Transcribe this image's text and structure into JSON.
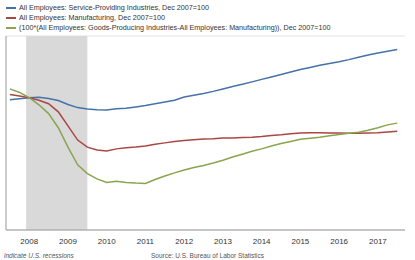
{
  "chart_data": {
    "type": "line",
    "x": [
      2007.5,
      2007.75,
      2008,
      2008.25,
      2008.5,
      2008.75,
      2009,
      2009.25,
      2009.5,
      2009.75,
      2010,
      2010.25,
      2010.5,
      2010.75,
      2011,
      2011.25,
      2011.5,
      2011.75,
      2012,
      2012.25,
      2012.5,
      2012.75,
      2013,
      2013.25,
      2013.5,
      2013.75,
      2014,
      2014.25,
      2014.5,
      2014.75,
      2015,
      2015.25,
      2015.5,
      2015.75,
      2016,
      2016.25,
      2016.5,
      2016.75,
      2017,
      2017.25,
      2017.5
    ],
    "series": [
      {
        "name": "All Employees: Service-Providing Industries, Dec 2007=100",
        "color": "#4572a7",
        "values": [
          99.4,
          99.7,
          100,
          100.1,
          99.8,
          99.2,
          98.1,
          97.2,
          96.8,
          96.6,
          96.5,
          96.9,
          97.0,
          97.4,
          97.8,
          98.3,
          98.8,
          99.3,
          100.2,
          100.7,
          101.2,
          101.8,
          102.5,
          103.2,
          103.8,
          104.5,
          105.2,
          105.9,
          106.6,
          107.3,
          108,
          108.6,
          109.2,
          109.7,
          110.2,
          110.8,
          111.5,
          112.1,
          112.7,
          113.2,
          113.7
        ]
      },
      {
        "name": "All Employees: Manufacturing, Dec 2007=100",
        "color": "#aa4643",
        "values": [
          100.9,
          100.5,
          100,
          99.3,
          98.3,
          96,
          92,
          88,
          86,
          85.2,
          84.9,
          85.5,
          85.8,
          86,
          86.3,
          86.8,
          87.2,
          87.6,
          87.9,
          88.1,
          88.3,
          88.4,
          88.6,
          88.6,
          88.7,
          88.8,
          89,
          89.3,
          89.5,
          89.8,
          90,
          90.1,
          90.1,
          90,
          90,
          89.9,
          89.9,
          90,
          90.1,
          90.3,
          90.5
        ]
      },
      {
        "name": "(100*(All Employees: Goods-Producing Industries-All Employees: Manufacturing)), Dec 2007=100",
        "color": "#89a54e",
        "values": [
          102.5,
          101.5,
          100,
          98,
          95.5,
          91.5,
          86,
          81,
          78.5,
          77,
          76,
          76.3,
          76,
          75.8,
          75.7,
          76.8,
          77.8,
          78.7,
          79.5,
          80.2,
          80.8,
          81.5,
          82.3,
          83.2,
          84,
          84.8,
          85.5,
          86.3,
          87,
          87.6,
          88.2,
          88.5,
          88.8,
          89.2,
          89.6,
          89.9,
          90.2,
          90.8,
          91.5,
          92.3,
          92.8
        ]
      }
    ],
    "xlim": [
      2007.4,
      2017.7
    ],
    "xticks": [
      2008,
      2009,
      2010,
      2011,
      2012,
      2013,
      2014,
      2015,
      2016,
      2017
    ],
    "ylim": [
      62.5,
      117.5
    ],
    "yticks": [
      65,
      70,
      75,
      80,
      85,
      90,
      95,
      100,
      105,
      110,
      115
    ],
    "grid": true,
    "tick_labels": "x",
    "legend": "top-left",
    "recession": [
      2007.92,
      2009.5
    ],
    "note": "indicate U.S. recessions",
    "source": "Source: U.S. Bureau of Labor Statistics"
  }
}
